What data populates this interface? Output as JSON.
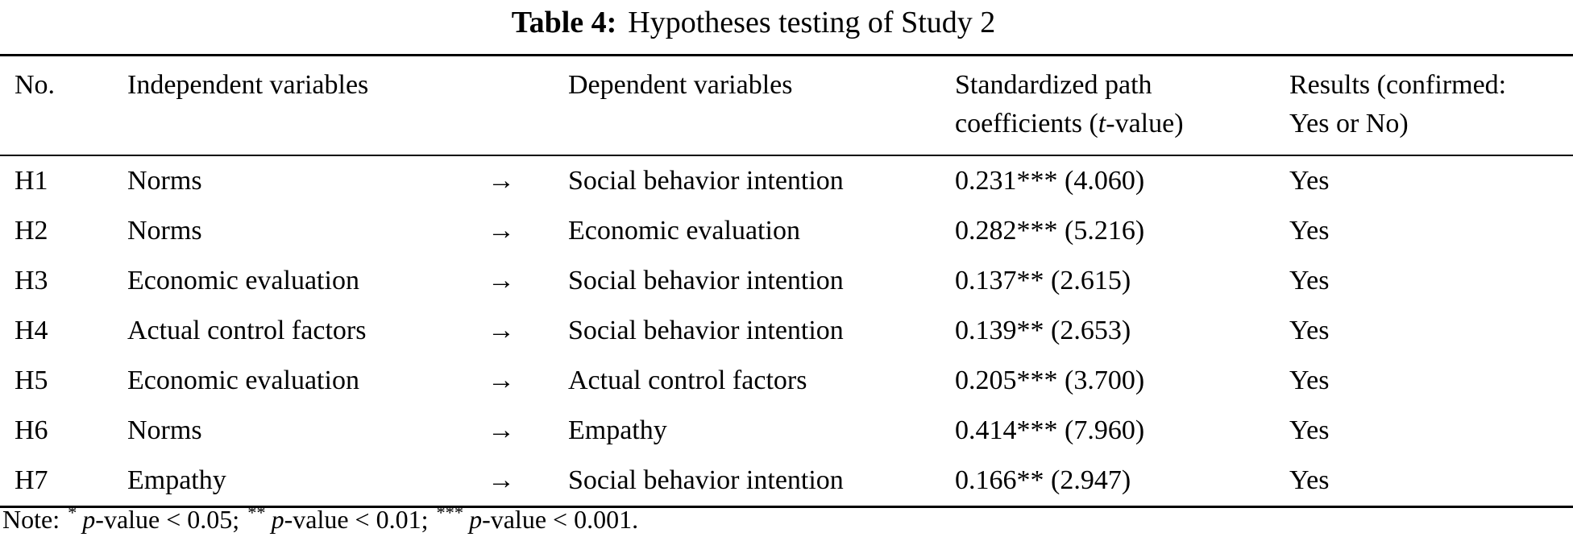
{
  "page": {
    "title": {
      "label": "Table 4:",
      "text": "Hypotheses testing of Study 2"
    }
  },
  "table": {
    "columns": {
      "no": "No.",
      "independent": "Independent variables",
      "dependent": "Dependent variables",
      "coefficients_line1": "Standardized path",
      "coefficients_line2_pre": "coefficients (",
      "coefficients_line2_italic": "t",
      "coefficients_line2_post": "-value)",
      "results_line1": "Results (confirmed:",
      "results_line2": "Yes or No)"
    },
    "arrow": "→",
    "rows": [
      {
        "no": "H1",
        "independent": "Norms",
        "dependent": "Social behavior intention",
        "coefficient": "0.231*** (4.060)",
        "result": "Yes"
      },
      {
        "no": "H2",
        "independent": "Norms",
        "dependent": "Economic evaluation",
        "coefficient": "0.282*** (5.216)",
        "result": "Yes"
      },
      {
        "no": "H3",
        "independent": "Economic evaluation",
        "dependent": "Social behavior intention",
        "coefficient": "0.137** (2.615)",
        "result": "Yes"
      },
      {
        "no": "H4",
        "independent": "Actual control factors",
        "dependent": "Social behavior intention",
        "coefficient": "0.139** (2.653)",
        "result": "Yes"
      },
      {
        "no": "H5",
        "independent": "Economic evaluation",
        "dependent": "Actual control factors",
        "coefficient": "0.205*** (3.700)",
        "result": "Yes"
      },
      {
        "no": "H6",
        "independent": "Norms",
        "dependent": "Empathy",
        "coefficient": "0.414*** (7.960)",
        "result": "Yes"
      },
      {
        "no": "H7",
        "independent": "Empathy",
        "dependent": "Social behavior intention",
        "coefficient": "0.166** (2.947)",
        "result": "Yes"
      }
    ]
  },
  "note": {
    "label": "Note:",
    "segments": [
      {
        "stars": "*",
        "p": "p",
        "text": "-value < 0.05;"
      },
      {
        "stars": "**",
        "p": "p",
        "text": "-value < 0.01;"
      },
      {
        "stars": "***",
        "p": "p",
        "text": "-value < 0.001."
      }
    ]
  }
}
